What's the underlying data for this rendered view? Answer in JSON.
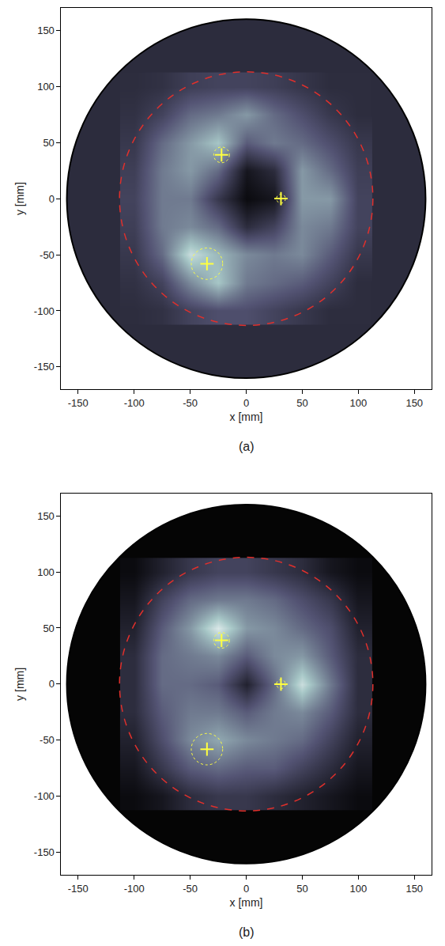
{
  "chart_data": [
    {
      "type": "heatmap",
      "label": "(a)",
      "x_label": "x [mm]",
      "y_label": "y [mm]",
      "xlim": [
        -165,
        165
      ],
      "ylim": [
        -170,
        170
      ],
      "xticks": [
        -150,
        -100,
        -50,
        0,
        50,
        100,
        150
      ],
      "yticks": [
        -150,
        -100,
        -50,
        0,
        50,
        100,
        150
      ],
      "heatmap": {
        "x": [
          -100,
          -75,
          -50,
          -25,
          0,
          25,
          50,
          75,
          100
        ],
        "y": [
          -100,
          -75,
          -50,
          -25,
          0,
          25,
          50,
          75,
          100
        ],
        "z": [
          [
            0.2,
            0.22,
            0.3,
            0.35,
            0.35,
            0.3,
            0.25,
            0.2,
            0.2
          ],
          [
            0.22,
            0.3,
            0.55,
            0.75,
            0.5,
            0.45,
            0.4,
            0.3,
            0.2
          ],
          [
            0.25,
            0.45,
            0.85,
            0.7,
            0.55,
            0.5,
            0.55,
            0.4,
            0.25
          ],
          [
            0.28,
            0.5,
            0.55,
            0.45,
            0.2,
            0.3,
            0.55,
            0.5,
            0.3
          ],
          [
            0.3,
            0.5,
            0.5,
            0.25,
            0.05,
            0.1,
            0.6,
            0.6,
            0.3
          ],
          [
            0.28,
            0.5,
            0.6,
            0.45,
            0.1,
            0.2,
            0.6,
            0.45,
            0.28
          ],
          [
            0.25,
            0.45,
            0.6,
            0.75,
            0.4,
            0.5,
            0.45,
            0.35,
            0.25
          ],
          [
            0.22,
            0.3,
            0.45,
            0.5,
            0.6,
            0.45,
            0.35,
            0.25,
            0.2
          ],
          [
            0.2,
            0.22,
            0.28,
            0.3,
            0.3,
            0.28,
            0.24,
            0.2,
            0.2
          ]
        ],
        "zlim": [
          0,
          1
        ]
      },
      "disc": {
        "r": 160,
        "color": "#2c2c3d"
      },
      "boundary": {
        "r": 113,
        "color": "#e0302c",
        "line_style": "dash"
      },
      "points": {
        "x": [
          -22,
          31,
          -35
        ],
        "y": [
          39,
          0,
          -58
        ],
        "color": "#ffff40",
        "marker": "cross"
      },
      "rings": {
        "x": [
          -22,
          31,
          -35
        ],
        "y": [
          39,
          0,
          -58
        ],
        "r": [
          7,
          4,
          14
        ],
        "color": "#ffff40",
        "line_style": "dot"
      }
    },
    {
      "type": "heatmap",
      "label": "(b)",
      "x_label": "x [mm]",
      "y_label": "y [mm]",
      "xlim": [
        -165,
        165
      ],
      "ylim": [
        -170,
        170
      ],
      "xticks": [
        -150,
        -100,
        -50,
        0,
        50,
        100,
        150
      ],
      "yticks": [
        -150,
        -100,
        -50,
        0,
        50,
        100,
        150
      ],
      "heatmap": {
        "x": [
          -100,
          -75,
          -50,
          -25,
          0,
          25,
          50,
          75,
          100
        ],
        "y": [
          -100,
          -75,
          -50,
          -25,
          0,
          25,
          50,
          75,
          100
        ],
        "z": [
          [
            0.05,
            0.1,
            0.2,
            0.25,
            0.25,
            0.2,
            0.15,
            0.1,
            0.05
          ],
          [
            0.1,
            0.25,
            0.4,
            0.45,
            0.4,
            0.4,
            0.3,
            0.2,
            0.1
          ],
          [
            0.15,
            0.35,
            0.55,
            0.65,
            0.55,
            0.5,
            0.45,
            0.3,
            0.15
          ],
          [
            0.2,
            0.4,
            0.5,
            0.5,
            0.4,
            0.5,
            0.55,
            0.4,
            0.2
          ],
          [
            0.2,
            0.45,
            0.45,
            0.4,
            0.15,
            0.45,
            0.85,
            0.5,
            0.2
          ],
          [
            0.2,
            0.45,
            0.5,
            0.55,
            0.4,
            0.55,
            0.6,
            0.4,
            0.2
          ],
          [
            0.15,
            0.4,
            0.6,
            0.9,
            0.6,
            0.55,
            0.45,
            0.35,
            0.15
          ],
          [
            0.1,
            0.3,
            0.45,
            0.5,
            0.5,
            0.45,
            0.35,
            0.25,
            0.1
          ],
          [
            0.05,
            0.15,
            0.25,
            0.3,
            0.3,
            0.25,
            0.2,
            0.1,
            0.05
          ]
        ],
        "zlim": [
          0,
          1
        ]
      },
      "disc": {
        "r": 160,
        "color": "#050505"
      },
      "boundary": {
        "r": 113,
        "color": "#e0302c",
        "line_style": "dash"
      },
      "points": {
        "x": [
          -22,
          31,
          -35
        ],
        "y": [
          39,
          0,
          -58
        ],
        "color": "#ffff40",
        "marker": "cross"
      },
      "rings": {
        "x": [
          -22,
          31,
          -35
        ],
        "y": [
          39,
          0,
          -58
        ],
        "r": [
          7,
          4,
          14
        ],
        "color": "#ffff40",
        "line_style": "dot"
      }
    }
  ]
}
